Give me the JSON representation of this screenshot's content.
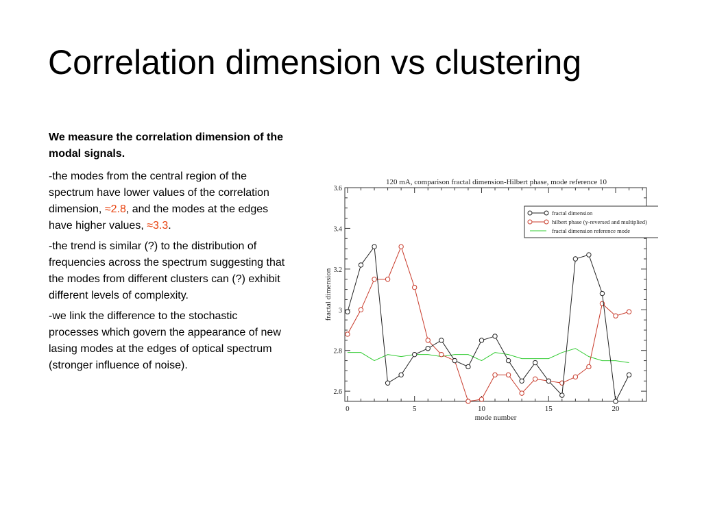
{
  "slide": {
    "title": "Correlation dimension vs clustering",
    "lead": "We measure the correlation dimension of the modal signals.",
    "p1_before": "-the modes from the central region of the spectrum have lower values of the correlation dimension, ",
    "p1_value1": "≈2.8",
    "p1_middle": ", and the modes at the edges have higher values, ",
    "p1_value2": "≈3.3",
    "p1_after": ".",
    "p2": "-the trend is similar (?) to the distribution of frequencies across the spectrum suggesting that the modes from different clusters can (?) exhibit different levels of complexity.",
    "p3": "-we link the difference to the stochastic processes which govern the appearance of new lasing modes at the edges of optical spectrum (stronger influence of noise)."
  },
  "colors": {
    "accent": "#e8400c",
    "series1": "#222222",
    "series2": "#c83a2a",
    "series3": "#33cc33"
  },
  "chart_data": {
    "type": "line",
    "title": "120 mA, comparison fractal dimension-Hilbert phase, mode reference 10",
    "xlabel": "mode number",
    "ylabel": "fractal dimension",
    "xlim": [
      -0.2,
      22.3
    ],
    "ylim": [
      2.55,
      3.6
    ],
    "xticks": [
      0,
      5,
      10,
      15,
      20
    ],
    "yticks": [
      2.6,
      2.8,
      3,
      3.2,
      3.4,
      3.6
    ],
    "ytick_labels": [
      "2.6",
      "2.8",
      "3",
      "3.2",
      "3.4",
      "3.6"
    ],
    "legend_position": "top-right",
    "x": [
      0,
      1,
      2,
      3,
      4,
      5,
      6,
      7,
      8,
      9,
      10,
      11,
      12,
      13,
      14,
      15,
      16,
      17,
      18,
      19,
      20,
      21
    ],
    "series": [
      {
        "name": "fractal dimension",
        "marker": "circle",
        "values": [
          2.99,
          3.22,
          3.31,
          2.64,
          2.68,
          2.78,
          2.81,
          2.85,
          2.75,
          2.72,
          2.85,
          2.87,
          2.75,
          2.65,
          2.74,
          2.65,
          2.58,
          3.25,
          3.27,
          3.08,
          2.55,
          2.68
        ]
      },
      {
        "name": "hilbert phase (y-reversed and multiplied)",
        "marker": "circle",
        "values": [
          2.88,
          3.0,
          3.15,
          3.15,
          3.31,
          3.11,
          2.85,
          2.78,
          2.75,
          2.55,
          2.56,
          2.68,
          2.68,
          2.59,
          2.66,
          2.65,
          2.64,
          2.67,
          2.72,
          3.03,
          2.97,
          2.99
        ]
      },
      {
        "name": "fractal dimension reference mode",
        "marker": "none",
        "values": [
          2.79,
          2.79,
          2.75,
          2.78,
          2.77,
          2.78,
          2.78,
          2.77,
          2.78,
          2.78,
          2.75,
          2.79,
          2.78,
          2.76,
          2.76,
          2.76,
          2.79,
          2.81,
          2.77,
          2.75,
          2.75,
          2.74
        ]
      }
    ]
  }
}
